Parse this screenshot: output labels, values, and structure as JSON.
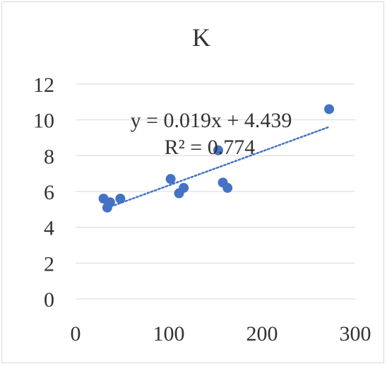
{
  "chart_data": {
    "type": "scatter",
    "title": "K",
    "xlabel": "",
    "ylabel": "",
    "xlim": [
      0,
      300
    ],
    "ylim": [
      0,
      12
    ],
    "x_ticks": [
      0,
      100,
      200,
      300
    ],
    "y_ticks": [
      0,
      2,
      4,
      6,
      8,
      10,
      12
    ],
    "x_tick_labels": [
      "0",
      "100",
      "200",
      "300"
    ],
    "y_tick_labels": [
      "0",
      "2",
      "4",
      "6",
      "8",
      "10",
      "12"
    ],
    "grid": "horizontal",
    "legend": "none",
    "series": [
      {
        "x": [
          30,
          34,
          37,
          48,
          102,
          111,
          116,
          153,
          158,
          163,
          272
        ],
        "y": [
          5.6,
          5.1,
          5.4,
          5.6,
          6.7,
          5.9,
          6.2,
          8.3,
          6.5,
          6.2,
          10.6
        ],
        "color": "#4472c4"
      }
    ],
    "trendline": {
      "type": "linear",
      "slope": 0.019,
      "intercept": 4.439,
      "x_range": [
        34,
        272
      ],
      "style": "dotted",
      "color": "#4472c4",
      "equation_label": "y = 0.019x + 4.439",
      "r2_label": "R² = 0.774"
    }
  }
}
